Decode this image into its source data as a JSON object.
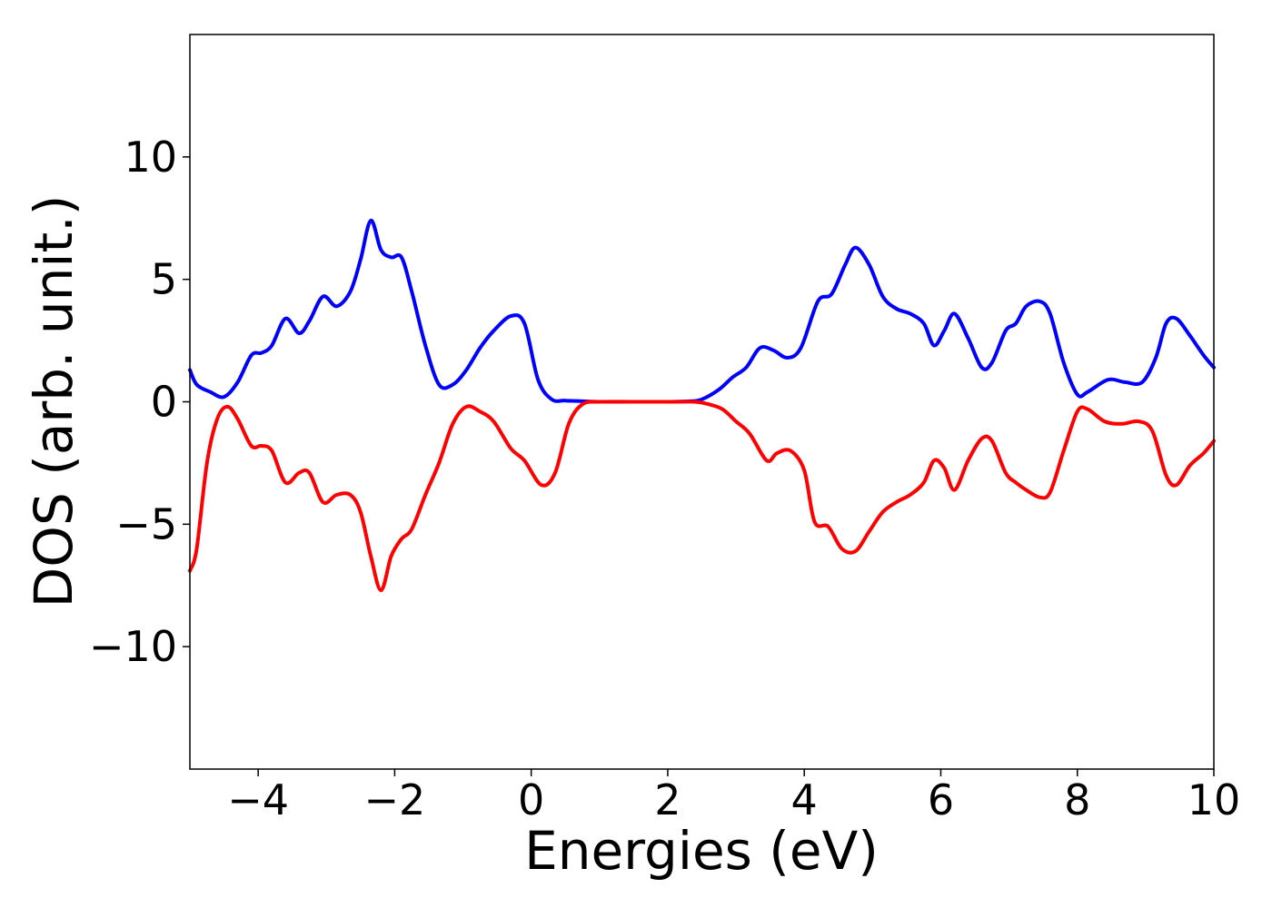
{
  "chart_data": {
    "type": "line",
    "xlabel": "Energies (eV)",
    "ylabel": "DOS (arb. unit.)",
    "xlim": [
      -5,
      10
    ],
    "ylim": [
      -15,
      15
    ],
    "xticks": [
      -4,
      -2,
      0,
      2,
      4,
      6,
      8,
      10
    ],
    "xtick_labels": [
      "−4",
      "−2",
      "0",
      "2",
      "4",
      "6",
      "8",
      "10"
    ],
    "yticks": [
      -10,
      -5,
      0,
      5,
      10
    ],
    "ytick_labels": [
      "−10",
      "−5",
      "0",
      "5",
      "10"
    ],
    "grid": false,
    "legend": "none",
    "series": [
      {
        "color": "#0000ff",
        "x": [
          -5.0,
          -4.9,
          -4.7,
          -4.5,
          -4.3,
          -4.1,
          -3.95,
          -3.8,
          -3.6,
          -3.4,
          -3.25,
          -3.05,
          -2.85,
          -2.65,
          -2.5,
          -2.35,
          -2.2,
          -2.05,
          -1.9,
          -1.75,
          -1.55,
          -1.35,
          -1.15,
          -0.95,
          -0.75,
          -0.55,
          -0.3,
          -0.1,
          0.1,
          0.3,
          0.5,
          0.8,
          1.0,
          1.5,
          2.0,
          2.3,
          2.5,
          2.75,
          2.95,
          3.15,
          3.35,
          3.55,
          3.75,
          3.95,
          4.2,
          4.4,
          4.6,
          4.75,
          4.95,
          5.15,
          5.35,
          5.55,
          5.75,
          5.9,
          6.05,
          6.2,
          6.4,
          6.6,
          6.75,
          6.95,
          7.1,
          7.25,
          7.45,
          7.6,
          7.8,
          8.0,
          8.15,
          8.45,
          8.7,
          8.95,
          9.15,
          9.3,
          9.45,
          9.65,
          9.85,
          10.0
        ],
        "y": [
          1.3,
          0.7,
          0.4,
          0.2,
          0.8,
          1.9,
          2.0,
          2.3,
          3.4,
          2.8,
          3.3,
          4.3,
          3.9,
          4.5,
          5.8,
          7.4,
          6.2,
          5.9,
          5.9,
          4.5,
          2.3,
          0.7,
          0.7,
          1.3,
          2.2,
          2.9,
          3.5,
          3.2,
          0.9,
          0.1,
          0.05,
          0.02,
          0.0,
          0.0,
          0.0,
          0.02,
          0.1,
          0.5,
          1.0,
          1.4,
          2.2,
          2.1,
          1.8,
          2.2,
          4.1,
          4.4,
          5.6,
          6.3,
          5.6,
          4.3,
          3.8,
          3.6,
          3.2,
          2.3,
          2.9,
          3.6,
          2.6,
          1.4,
          1.6,
          2.9,
          3.2,
          3.9,
          4.1,
          3.6,
          1.6,
          0.3,
          0.4,
          0.9,
          0.8,
          0.8,
          1.8,
          3.2,
          3.4,
          2.7,
          1.9,
          1.4
        ]
      },
      {
        "color": "#ff0000",
        "x": [
          -5.0,
          -4.9,
          -4.75,
          -4.6,
          -4.45,
          -4.3,
          -4.1,
          -3.95,
          -3.8,
          -3.6,
          -3.4,
          -3.25,
          -3.05,
          -2.85,
          -2.65,
          -2.5,
          -2.35,
          -2.2,
          -2.05,
          -1.9,
          -1.75,
          -1.55,
          -1.35,
          -1.15,
          -0.95,
          -0.75,
          -0.55,
          -0.3,
          -0.1,
          0.15,
          0.35,
          0.55,
          0.75,
          1.0,
          1.5,
          2.0,
          2.4,
          2.6,
          2.8,
          3.0,
          3.2,
          3.45,
          3.6,
          3.8,
          4.0,
          4.15,
          4.35,
          4.55,
          4.75,
          4.95,
          5.15,
          5.35,
          5.55,
          5.75,
          5.9,
          6.05,
          6.2,
          6.4,
          6.6,
          6.75,
          6.95,
          7.1,
          7.25,
          7.45,
          7.6,
          7.8,
          8.0,
          8.15,
          8.4,
          8.65,
          8.9,
          9.1,
          9.3,
          9.45,
          9.65,
          9.85,
          10.0
        ],
        "y": [
          -6.9,
          -6.0,
          -2.5,
          -0.7,
          -0.2,
          -0.7,
          -1.8,
          -1.8,
          -2.0,
          -3.3,
          -2.9,
          -2.9,
          -4.1,
          -3.8,
          -3.8,
          -4.5,
          -6.3,
          -7.7,
          -6.3,
          -5.6,
          -5.2,
          -3.8,
          -2.5,
          -0.9,
          -0.2,
          -0.4,
          -0.8,
          -1.9,
          -2.4,
          -3.4,
          -2.9,
          -0.9,
          -0.1,
          0.0,
          0.0,
          0.0,
          0.0,
          -0.1,
          -0.3,
          -0.8,
          -1.3,
          -2.4,
          -2.1,
          -2.0,
          -2.8,
          -4.9,
          -5.1,
          -6.0,
          -6.1,
          -5.3,
          -4.5,
          -4.1,
          -3.8,
          -3.3,
          -2.4,
          -2.7,
          -3.6,
          -2.4,
          -1.5,
          -1.6,
          -2.9,
          -3.3,
          -3.6,
          -3.9,
          -3.7,
          -2.0,
          -0.4,
          -0.3,
          -0.8,
          -0.9,
          -0.8,
          -1.2,
          -3.0,
          -3.4,
          -2.6,
          -2.1,
          -1.6
        ]
      }
    ]
  }
}
